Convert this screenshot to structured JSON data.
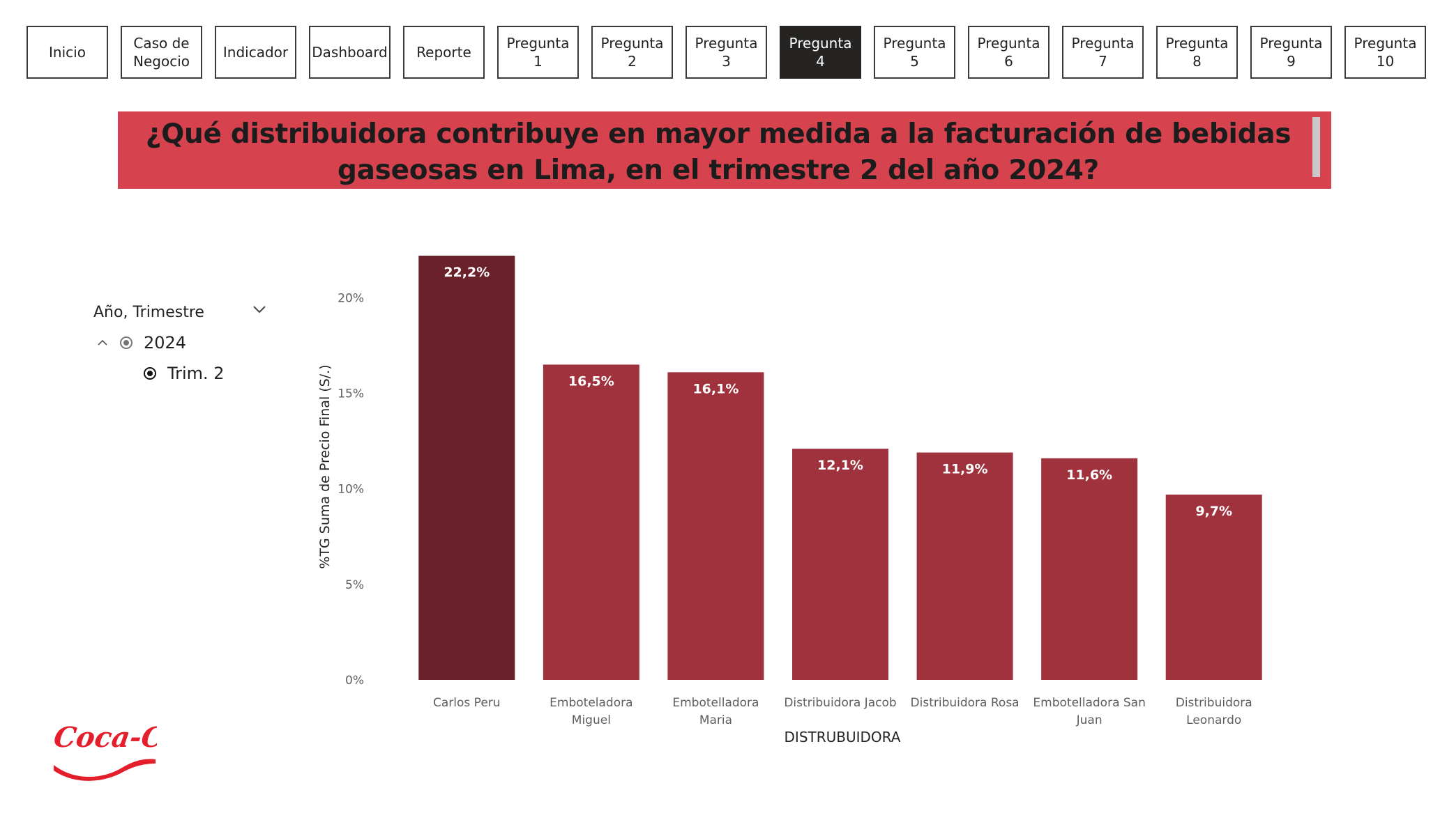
{
  "nav": {
    "buttons": [
      {
        "label": "Inicio",
        "active": false
      },
      {
        "label": "Caso de\nNegocio",
        "active": false
      },
      {
        "label": "Indicador",
        "active": false
      },
      {
        "label": "Dashboard",
        "active": false
      },
      {
        "label": "Reporte",
        "active": false
      },
      {
        "label": "Pregunta 1",
        "active": false
      },
      {
        "label": "Pregunta 2",
        "active": false
      },
      {
        "label": "Pregunta 3",
        "active": false
      },
      {
        "label": "Pregunta 4",
        "active": true
      },
      {
        "label": "Pregunta 5",
        "active": false
      },
      {
        "label": "Pregunta 6",
        "active": false
      },
      {
        "label": "Pregunta 7",
        "active": false
      },
      {
        "label": "Pregunta 8",
        "active": false
      },
      {
        "label": "Pregunta 9",
        "active": false
      },
      {
        "label": "Pregunta 10",
        "active": false
      }
    ]
  },
  "question": {
    "title": "¿Qué distribuidora contribuye en mayor medida a la facturación de bebidas gaseosas en Lima, en el trimestre 2 del año 2024?",
    "banner_color": "#d6434e"
  },
  "slicer": {
    "header": "Año, Trimestre",
    "year": "2024",
    "quarter": "Trim. 2"
  },
  "chart_data": {
    "type": "bar",
    "categories": [
      "Carlos Peru",
      "Emboteladora Miguel",
      "Embotelladora Maria",
      "Distribuidora Jacob",
      "Distribuidora Rosa",
      "Embotelladora San Juan",
      "Distribuidora Leonardo"
    ],
    "category_label_lines": [
      [
        "Carlos Peru"
      ],
      [
        "Emboteladora",
        "Miguel"
      ],
      [
        "Embotelladora",
        "Maria"
      ],
      [
        "Distribuidora Jacob"
      ],
      [
        "Distribuidora Rosa"
      ],
      [
        "Embotelladora San",
        "Juan"
      ],
      [
        "Distribuidora",
        "Leonardo"
      ]
    ],
    "values": [
      22.2,
      16.5,
      16.1,
      12.1,
      11.9,
      11.6,
      9.7
    ],
    "data_labels": [
      "22,2%",
      "16,5%",
      "16,1%",
      "12,1%",
      "11,9%",
      "11,6%",
      "9,7%"
    ],
    "xlabel": "DISTRUBUIDORA",
    "ylabel": "%TG Suma de Precio Final (S/.)",
    "ylim": [
      0,
      22.2
    ],
    "yticks": [
      0,
      5,
      10,
      15,
      20
    ],
    "ytick_labels": [
      "0%",
      "5%",
      "10%",
      "15%",
      "20%"
    ],
    "grid": false,
    "highlight_color": "#6b2129",
    "bar_color": "#a0323e"
  },
  "logo": {
    "text": "Coca-Cola",
    "color": "#e41e2b"
  }
}
